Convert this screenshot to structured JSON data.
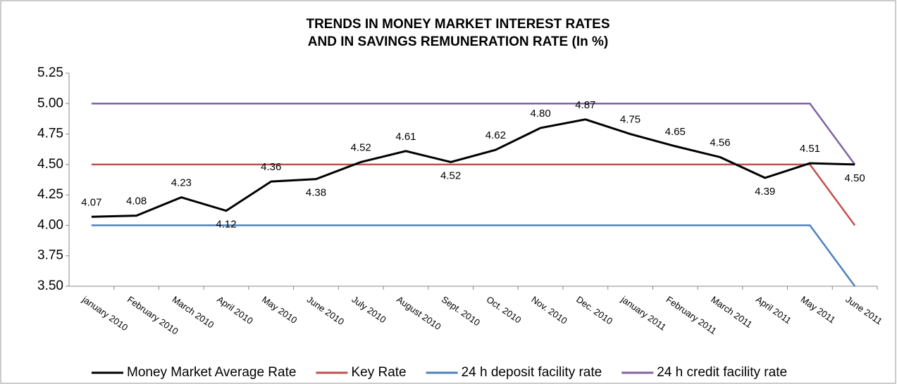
{
  "chart_data": {
    "type": "line",
    "title": [
      "TRENDS IN MONEY MARKET INTEREST RATES",
      "AND IN SAVINGS REMUNERATION RATE (In %)"
    ],
    "categories": [
      "january 2010",
      "February 2010",
      "March 2010",
      "April 2010",
      "May 2010",
      "June 2010",
      "July 2010",
      "August 2010",
      "Sept. 2010",
      "Oct. 2010",
      "Nov. 2010",
      "Dec. 2010",
      "january 2011",
      "February 2011",
      "March 2011",
      "April 2011",
      "May 2011",
      "June 2011"
    ],
    "series": [
      {
        "name": "Money Market Average Rate",
        "color": "#000000",
        "values": [
          4.07,
          4.08,
          4.23,
          4.12,
          4.36,
          4.38,
          4.52,
          4.61,
          4.52,
          4.62,
          4.8,
          4.87,
          4.75,
          4.65,
          4.56,
          4.39,
          4.51,
          4.5
        ],
        "value_labels": [
          "4.07",
          "4.08",
          "4.23",
          "4.12",
          "4.36",
          "4.38",
          "4.52",
          "4.61",
          "4.52",
          "4.62",
          "4.80",
          "4.87",
          "4.75",
          "4.65",
          "4.56",
          "4.39",
          "4.51",
          "4.50"
        ]
      },
      {
        "name": "Key Rate",
        "color": "#c0504d",
        "values": [
          4.5,
          4.5,
          4.5,
          4.5,
          4.5,
          4.5,
          4.5,
          4.5,
          4.5,
          4.5,
          4.5,
          4.5,
          4.5,
          4.5,
          4.5,
          4.5,
          4.5,
          4.0
        ]
      },
      {
        "name": "24 h deposit facility rate",
        "color": "#4f81bd",
        "values": [
          4.0,
          4.0,
          4.0,
          4.0,
          4.0,
          4.0,
          4.0,
          4.0,
          4.0,
          4.0,
          4.0,
          4.0,
          4.0,
          4.0,
          4.0,
          4.0,
          4.0,
          3.5
        ]
      },
      {
        "name": "24 h credit facility rate",
        "color": "#8064a2",
        "values": [
          5.0,
          5.0,
          5.0,
          5.0,
          5.0,
          5.0,
          5.0,
          5.0,
          5.0,
          5.0,
          5.0,
          5.0,
          5.0,
          5.0,
          5.0,
          5.0,
          5.0,
          4.5
        ]
      }
    ],
    "ylim": [
      3.5,
      5.25
    ],
    "yticks": [
      {
        "value": 3.5,
        "label": "3.50"
      },
      3.75,
      {
        "value": 4,
        "label": "4.00"
      },
      4.25,
      {
        "value": 4.5,
        "label": "4.50"
      },
      4.75,
      {
        "value": 5,
        "label": "5.00"
      },
      5.25
    ],
    "legend": "bottom"
  }
}
